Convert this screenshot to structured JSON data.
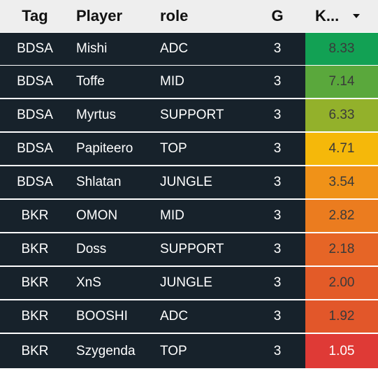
{
  "header": {
    "tag": "Tag",
    "player": "Player",
    "role": "role",
    "g": "G",
    "k": "K..."
  },
  "sort_icon": "sort-descending-icon",
  "rows": [
    {
      "tag": "BDSA",
      "player": "Mishi",
      "role": "ADC",
      "g": "3",
      "k": "8.33",
      "color": "#12a154"
    },
    {
      "tag": "BDSA",
      "player": "Toffe",
      "role": "MID",
      "g": "3",
      "k": "7.14",
      "color": "#5aa83c"
    },
    {
      "tag": "BDSA",
      "player": "Myrtus",
      "role": "SUPPORT",
      "g": "3",
      "k": "6.33",
      "color": "#93b12b"
    },
    {
      "tag": "BDSA",
      "player": "Papiteero",
      "role": "TOP",
      "g": "3",
      "k": "4.71",
      "color": "#f5b80a"
    },
    {
      "tag": "BDSA",
      "player": "Shlatan",
      "role": "JUNGLE",
      "g": "3",
      "k": "3.54",
      "color": "#f09218"
    },
    {
      "tag": "BKR",
      "player": "OMON",
      "role": "MID",
      "g": "3",
      "k": "2.82",
      "color": "#eb7c1f"
    },
    {
      "tag": "BKR",
      "player": "Doss",
      "role": "SUPPORT",
      "g": "3",
      "k": "2.18",
      "color": "#e66526"
    },
    {
      "tag": "BKR",
      "player": "XnS",
      "role": "JUNGLE",
      "g": "3",
      "k": "2.00",
      "color": "#e35b28"
    },
    {
      "tag": "BKR",
      "player": "BOOSHI",
      "role": "ADC",
      "g": "3",
      "k": "1.92",
      "color": "#e2572a"
    },
    {
      "tag": "BKR",
      "player": "Szygenda",
      "role": "TOP",
      "g": "3",
      "k": "1.05",
      "color": "#df3a36"
    }
  ]
}
